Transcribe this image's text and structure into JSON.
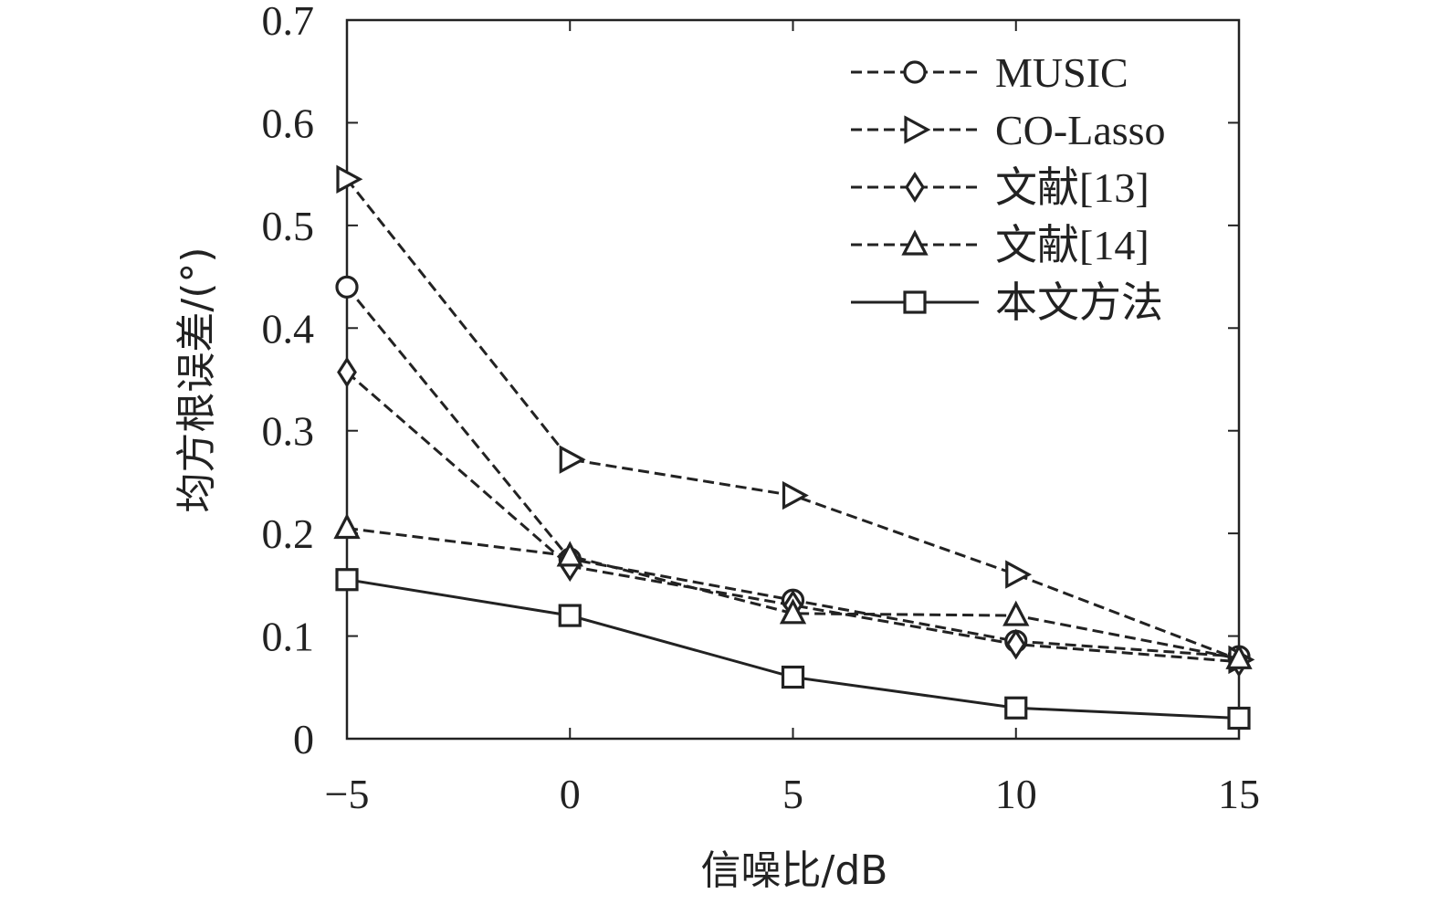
{
  "chart_data": {
    "type": "line",
    "xlabel": "信噪比/dB",
    "ylabel": "均方根误差/(°)",
    "xlim": [
      -5,
      15
    ],
    "ylim": [
      0,
      0.7
    ],
    "x_ticks": [
      -5,
      0,
      5,
      10,
      15
    ],
    "x_tick_labels": [
      "−5",
      "0",
      "5",
      "10",
      "15"
    ],
    "y_ticks": [
      0,
      0.1,
      0.2,
      0.3,
      0.4,
      0.5,
      0.6,
      0.7
    ],
    "y_tick_labels": [
      "0",
      "0.1",
      "0.2",
      "0.3",
      "0.4",
      "0.5",
      "0.6",
      "0.7"
    ],
    "grid": false,
    "legend_position": "top-right",
    "x": [
      -5,
      0,
      5,
      10,
      15
    ],
    "series": [
      {
        "name": "MUSIC",
        "marker": "circle",
        "line": "dashed",
        "values": [
          0.44,
          0.175,
          0.135,
          0.095,
          0.08
        ]
      },
      {
        "name": "CO-Lasso",
        "marker": "triangle-right",
        "line": "dashed",
        "values": [
          0.545,
          0.272,
          0.237,
          0.16,
          0.077
        ]
      },
      {
        "name": "文献[13]",
        "marker": "diamond",
        "line": "dashed",
        "values": [
          0.357,
          0.168,
          0.13,
          0.092,
          0.075
        ]
      },
      {
        "name": "文献[14]",
        "marker": "triangle-up",
        "line": "dashed",
        "values": [
          0.205,
          0.178,
          0.122,
          0.12,
          0.078
        ]
      },
      {
        "name": "本文方法",
        "marker": "square",
        "line": "solid",
        "values": [
          0.155,
          0.12,
          0.06,
          0.03,
          0.02
        ]
      }
    ],
    "colors": {
      "line": "#222222",
      "background": "#ffffff"
    }
  }
}
